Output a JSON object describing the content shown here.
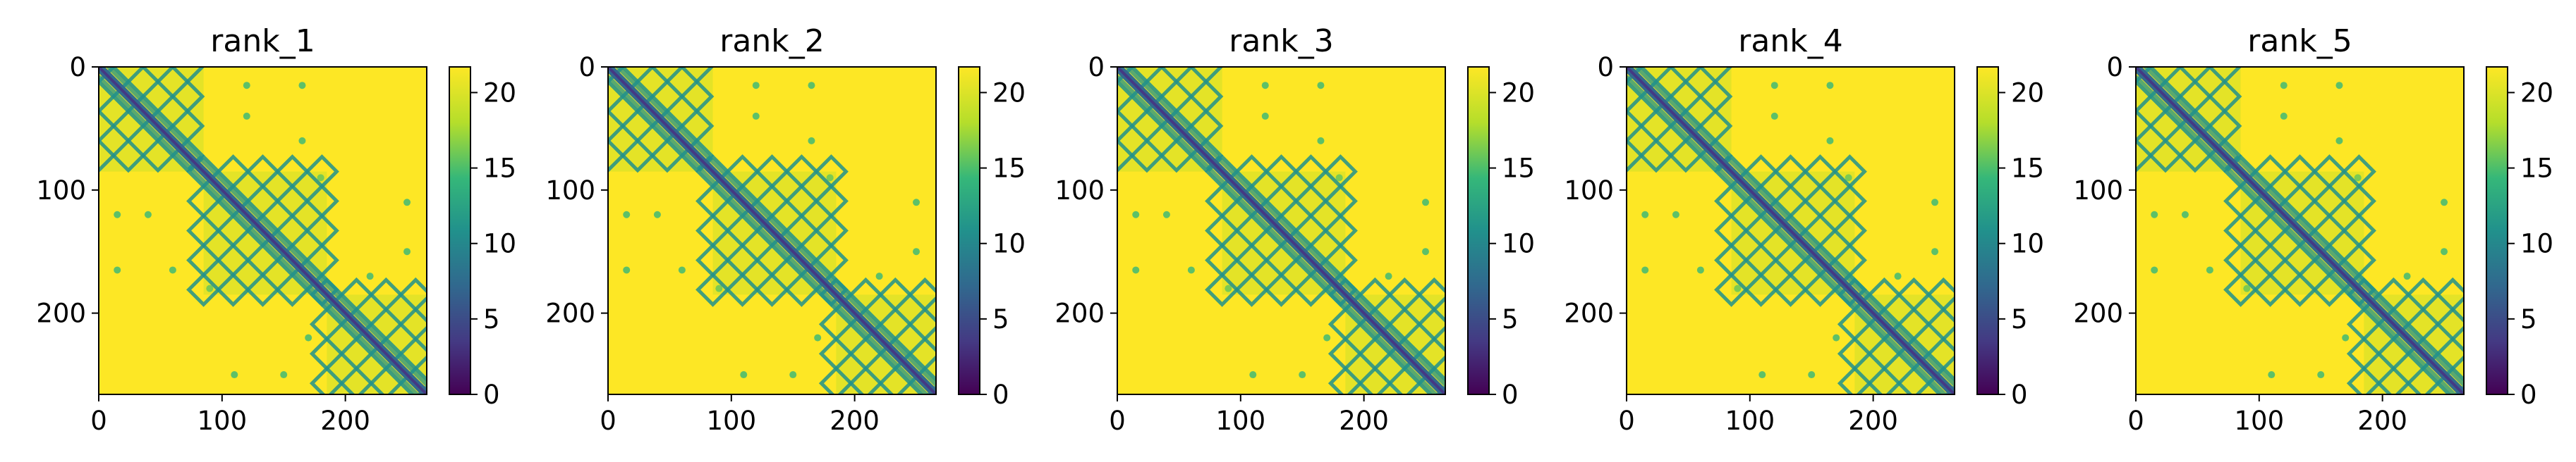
{
  "chart_data": [
    {
      "type": "heatmap",
      "title": "rank_1",
      "xlim": [
        0,
        266
      ],
      "ylim": [
        266,
        0
      ],
      "x_ticks": [
        "0",
        "100",
        "200"
      ],
      "y_ticks": [
        "0",
        "100",
        "200"
      ],
      "colorbar": {
        "range": [
          0,
          21.7
        ],
        "ticks": [
          "0",
          "5",
          "10",
          "15",
          "20"
        ],
        "colormap": "viridis"
      },
      "domains": [
        [
          0,
          85
        ],
        [
          85,
          185
        ],
        [
          185,
          266
        ]
      ],
      "background_value": 21.7
    },
    {
      "type": "heatmap",
      "title": "rank_2",
      "xlim": [
        0,
        266
      ],
      "ylim": [
        266,
        0
      ],
      "x_ticks": [
        "0",
        "100",
        "200"
      ],
      "y_ticks": [
        "0",
        "100",
        "200"
      ],
      "colorbar": {
        "range": [
          0,
          21.7
        ],
        "ticks": [
          "0",
          "5",
          "10",
          "15",
          "20"
        ],
        "colormap": "viridis"
      },
      "domains": [
        [
          0,
          85
        ],
        [
          85,
          185
        ],
        [
          185,
          266
        ]
      ],
      "background_value": 21.7
    },
    {
      "type": "heatmap",
      "title": "rank_3",
      "xlim": [
        0,
        266
      ],
      "ylim": [
        266,
        0
      ],
      "x_ticks": [
        "0",
        "100",
        "200"
      ],
      "y_ticks": [
        "0",
        "100",
        "200"
      ],
      "colorbar": {
        "range": [
          0,
          21.7
        ],
        "ticks": [
          "0",
          "5",
          "10",
          "15",
          "20"
        ],
        "colormap": "viridis"
      },
      "domains": [
        [
          0,
          85
        ],
        [
          85,
          185
        ],
        [
          185,
          266
        ]
      ],
      "background_value": 21.7
    },
    {
      "type": "heatmap",
      "title": "rank_4",
      "xlim": [
        0,
        266
      ],
      "ylim": [
        266,
        0
      ],
      "x_ticks": [
        "0",
        "100",
        "200"
      ],
      "y_ticks": [
        "0",
        "100",
        "200"
      ],
      "colorbar": {
        "range": [
          0,
          21.7
        ],
        "ticks": [
          "0",
          "5",
          "10",
          "15",
          "20"
        ],
        "colormap": "viridis"
      },
      "domains": [
        [
          0,
          85
        ],
        [
          85,
          185
        ],
        [
          185,
          266
        ]
      ],
      "background_value": 21.7
    },
    {
      "type": "heatmap",
      "title": "rank_5",
      "xlim": [
        0,
        266
      ],
      "ylim": [
        266,
        0
      ],
      "x_ticks": [
        "0",
        "100",
        "200"
      ],
      "y_ticks": [
        "0",
        "100",
        "200"
      ],
      "colorbar": {
        "range": [
          0,
          21.7
        ],
        "ticks": [
          "0",
          "5",
          "10",
          "15",
          "20"
        ],
        "colormap": "viridis"
      },
      "domains": [
        [
          0,
          85
        ],
        [
          85,
          185
        ],
        [
          185,
          266
        ]
      ],
      "background_value": 21.7
    }
  ],
  "colors": {
    "high": "#fde725",
    "mid_high": "#b5de2b",
    "mid": "#35b779",
    "teal": "#21918c",
    "mid_low": "#31688e",
    "low": "#443983",
    "min": "#440154"
  }
}
